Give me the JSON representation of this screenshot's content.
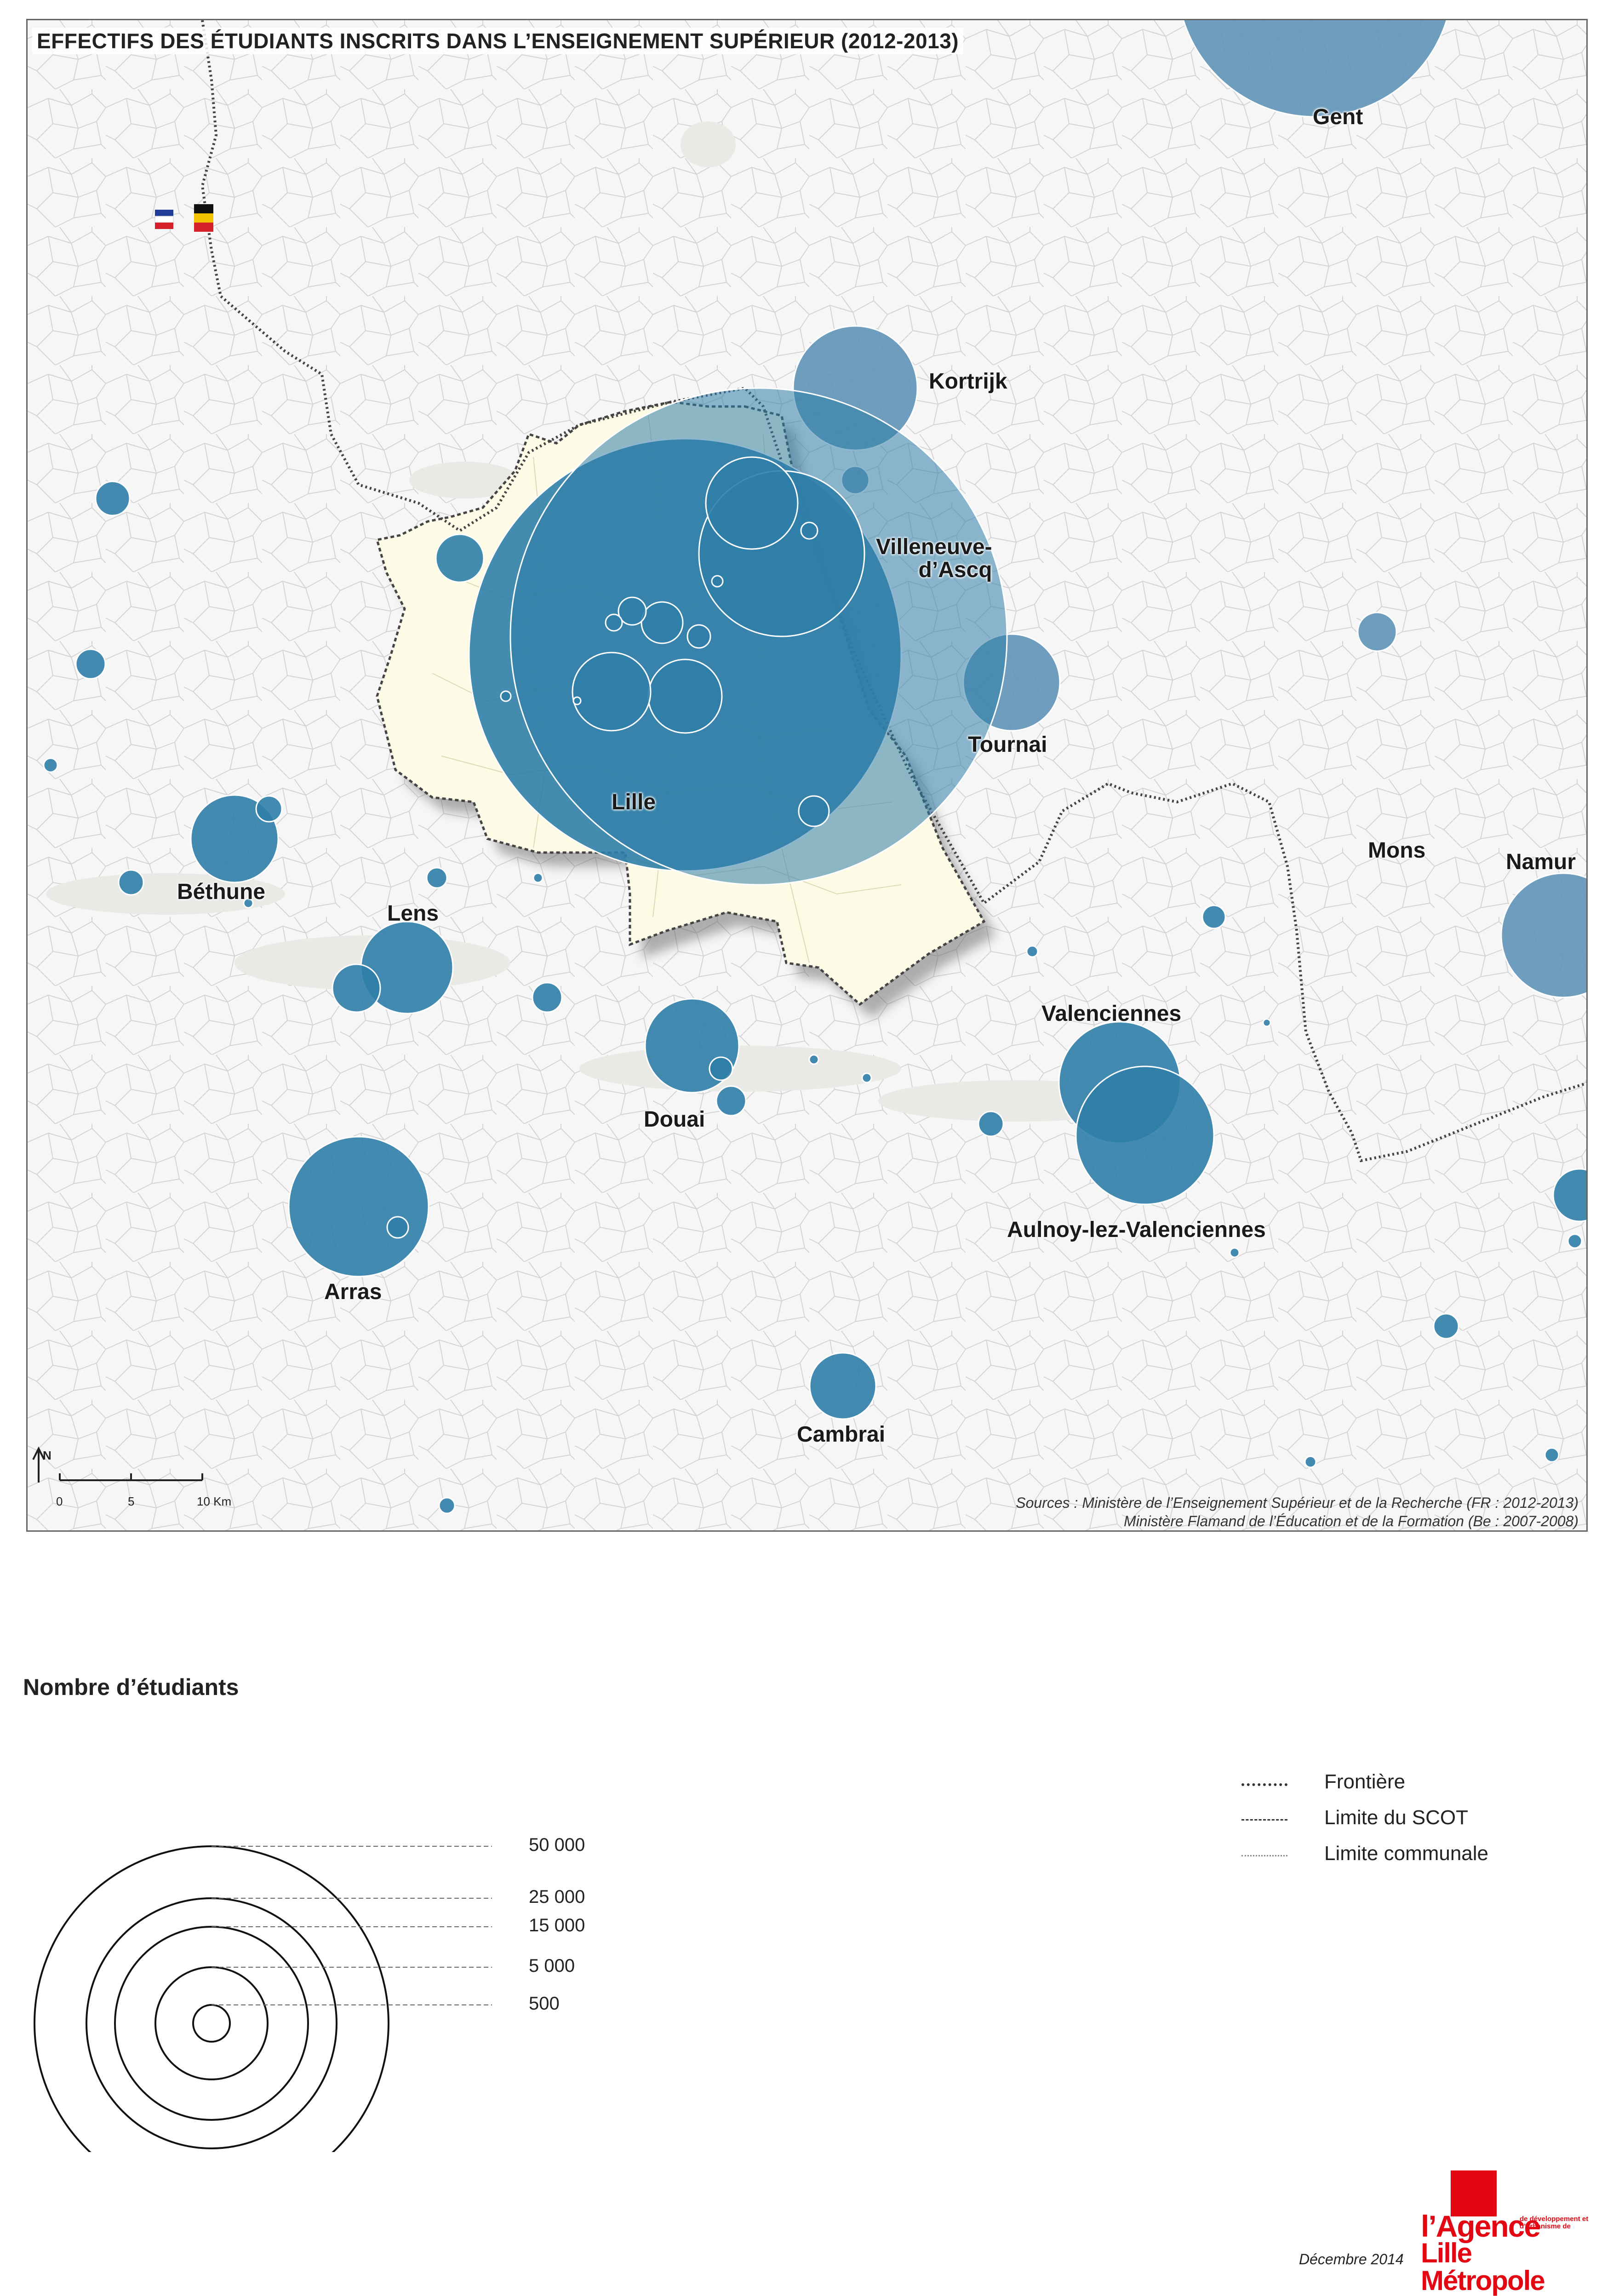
{
  "title": "EFFECTIFS DES ÉTUDIANTS INSCRITS DANS L’ENSEIGNEMENT SUPÉRIEUR (2012-2013)",
  "colors": {
    "circle_fr": "#2f7ea8",
    "circle_be": "#5f93b7",
    "scot_fill": "#fdfae6",
    "background": "#f6f6f6",
    "communal_lines": "#d2d2d2"
  },
  "flags": [
    "France",
    "Belgique"
  ],
  "cities": [
    {
      "id": "gent",
      "label": "Gent"
    },
    {
      "id": "kortrijk",
      "label": "Kortrijk"
    },
    {
      "id": "villeneuve",
      "label": "Villeneuve-\nd’Ascq"
    },
    {
      "id": "tournai",
      "label": "Tournai"
    },
    {
      "id": "lille",
      "label": "Lille"
    },
    {
      "id": "mons",
      "label": "Mons"
    },
    {
      "id": "namur",
      "label": "Namur"
    },
    {
      "id": "bethune",
      "label": "Béthune"
    },
    {
      "id": "lens",
      "label": "Lens"
    },
    {
      "id": "valenciennes",
      "label": "Valenciennes"
    },
    {
      "id": "douai",
      "label": "Douai"
    },
    {
      "id": "aulnoy",
      "label": "Aulnoy-lez-Valenciennes"
    },
    {
      "id": "arras",
      "label": "Arras"
    },
    {
      "id": "cambrai",
      "label": "Cambrai"
    }
  ],
  "sources": {
    "line1": "Sources : Ministère de l’Enseignement Supérieur et de la Recherche (FR : 2012-2013)",
    "line2": "Ministère Flamand de l’Éducation et de la Formation (Be : 2007-2008)"
  },
  "scale": {
    "north": "N",
    "labels": [
      "0",
      "5",
      "10 Km"
    ]
  },
  "legend": {
    "title": "Nombre d’étudiants",
    "values": [
      "50 000",
      "25 000",
      "15 000",
      "5 000",
      "500"
    ]
  },
  "line_legend": {
    "frontiere": "Frontière",
    "scot": "Limite du SCOT",
    "communale": "Limite communale"
  },
  "logo": {
    "agence": "l’Agence",
    "sub": "de développement et d’urbanisme de",
    "metropole": "Lille Métropole"
  },
  "date": "Décembre 2014"
}
